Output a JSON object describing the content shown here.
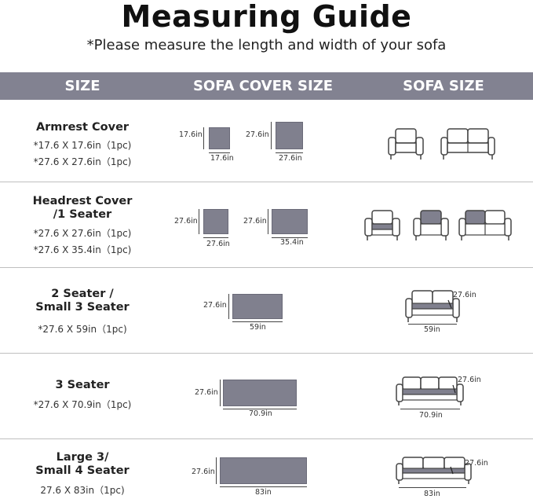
{
  "title": "Measuring Guide",
  "subtitle": "*Please measure the length and width of your sofa",
  "headers": {
    "size": "SIZE",
    "cover": "SOFA COVER SIZE",
    "sofa": "SOFA SIZE"
  },
  "rows": [
    {
      "name_line1": "Armrest Cover",
      "name_line2": "",
      "specs": [
        "*17.6 X 17.6in（1pc)",
        "*27.6 X 27.6in（1pc)"
      ],
      "pieces": [
        {
          "w": "17.6in",
          "h": "17.6in"
        },
        {
          "w": "27.6in",
          "h": "27.6in"
        }
      ]
    },
    {
      "name_line1": "Headrest Cover",
      "name_line2": "/1 Seater",
      "specs": [
        "*27.6 X 27.6in（1pc)",
        "*27.6 X 35.4in（1pc)"
      ],
      "pieces": [
        {
          "w": "27.6in",
          "h": "27.6in"
        },
        {
          "w": "35.4in",
          "h": "27.6in"
        }
      ]
    },
    {
      "name_line1": "2 Seater /",
      "name_line2": "Small 3 Seater",
      "specs": [
        "*27.6 X 59in（1pc)"
      ],
      "pieces": [
        {
          "w": "59in",
          "h": "27.6in"
        }
      ],
      "sofa_dims": {
        "w": "59in",
        "h": "27.6in"
      }
    },
    {
      "name_line1": "3 Seater",
      "name_line2": "",
      "specs": [
        "*27.6 X 70.9in（1pc)"
      ],
      "pieces": [
        {
          "w": "70.9in",
          "h": "27.6in"
        }
      ],
      "sofa_dims": {
        "w": "70.9in",
        "h": "27.6in"
      }
    },
    {
      "name_line1": "Large 3/",
      "name_line2": "Small 4 Seater",
      "specs": [
        "27.6 X 83in（1pc)"
      ],
      "pieces": [
        {
          "w": "83in",
          "h": "27.6in"
        }
      ],
      "sofa_dims": {
        "w": "83in",
        "h": "27.6in"
      }
    }
  ],
  "colors": {
    "header": "#828291",
    "piece": "#80808e",
    "text": "#222222"
  }
}
